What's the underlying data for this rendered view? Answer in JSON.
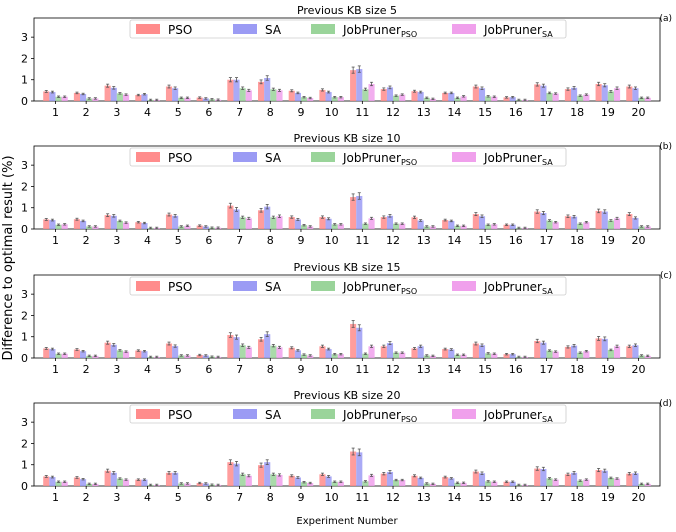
{
  "figure": {
    "ylabel": "Difference to optimal result (%)",
    "xlabel": "Experiment Number"
  },
  "legend": [
    {
      "label": "PSO",
      "sub": "",
      "color": "#ff8c8c"
    },
    {
      "label": "SA",
      "sub": "",
      "color": "#9b9bf4"
    },
    {
      "label": "JobPruner",
      "sub": "PSO",
      "color": "#9ad49a"
    },
    {
      "label": "JobPruner",
      "sub": "SA",
      "color": "#f0a0ec"
    }
  ],
  "chart_data": [
    {
      "type": "bar",
      "title": "Previous KB size 5",
      "panel_label": "(a)",
      "categories": [
        "1",
        "2",
        "3",
        "4",
        "5",
        "6",
        "7",
        "8",
        "9",
        "10",
        "11",
        "12",
        "13",
        "14",
        "15",
        "16",
        "17",
        "18",
        "19",
        "20"
      ],
      "ylim": [
        0,
        3.9
      ],
      "yticks": [
        0,
        1,
        2,
        3
      ],
      "legend_position": "upper center",
      "series": [
        {
          "name": "PSO",
          "values": [
            0.45,
            0.38,
            0.72,
            0.28,
            0.68,
            0.16,
            1.0,
            0.9,
            0.48,
            0.52,
            1.45,
            0.56,
            0.46,
            0.38,
            0.68,
            0.17,
            0.78,
            0.56,
            0.8,
            0.68
          ]
        },
        {
          "name": "SA",
          "values": [
            0.42,
            0.33,
            0.62,
            0.32,
            0.6,
            0.12,
            1.0,
            1.08,
            0.38,
            0.42,
            1.5,
            0.64,
            0.42,
            0.38,
            0.6,
            0.18,
            0.72,
            0.62,
            0.74,
            0.6
          ]
        },
        {
          "name": "JobPruner PSO",
          "values": [
            0.2,
            0.12,
            0.36,
            0.05,
            0.15,
            0.08,
            0.6,
            0.55,
            0.18,
            0.18,
            0.55,
            0.25,
            0.15,
            0.15,
            0.22,
            0.05,
            0.38,
            0.25,
            0.45,
            0.15
          ]
        },
        {
          "name": "JobPruner SA",
          "values": [
            0.2,
            0.12,
            0.3,
            0.05,
            0.15,
            0.06,
            0.5,
            0.5,
            0.14,
            0.18,
            0.8,
            0.3,
            0.1,
            0.22,
            0.2,
            0.05,
            0.35,
            0.3,
            0.6,
            0.15
          ]
        }
      ]
    },
    {
      "type": "bar",
      "title": "Previous KB size 10",
      "panel_label": "(b)",
      "categories": [
        "1",
        "2",
        "3",
        "4",
        "5",
        "6",
        "7",
        "8",
        "9",
        "10",
        "11",
        "12",
        "13",
        "14",
        "15",
        "16",
        "17",
        "18",
        "19",
        "20"
      ],
      "ylim": [
        0,
        3.9
      ],
      "yticks": [
        0,
        1,
        2,
        3
      ],
      "legend_position": "upper center",
      "series": [
        {
          "name": "PSO",
          "values": [
            0.45,
            0.46,
            0.65,
            0.32,
            0.68,
            0.16,
            1.1,
            0.88,
            0.56,
            0.56,
            1.5,
            0.56,
            0.55,
            0.42,
            0.7,
            0.2,
            0.82,
            0.6,
            0.85,
            0.7
          ]
        },
        {
          "name": "SA",
          "values": [
            0.42,
            0.38,
            0.62,
            0.28,
            0.62,
            0.12,
            0.92,
            1.05,
            0.45,
            0.48,
            1.55,
            0.62,
            0.4,
            0.38,
            0.6,
            0.2,
            0.75,
            0.58,
            0.82,
            0.52
          ]
        },
        {
          "name": "JobPruner PSO",
          "values": [
            0.2,
            0.12,
            0.38,
            0.05,
            0.12,
            0.06,
            0.55,
            0.55,
            0.18,
            0.22,
            0.25,
            0.25,
            0.12,
            0.15,
            0.2,
            0.05,
            0.4,
            0.25,
            0.4,
            0.12
          ]
        },
        {
          "name": "JobPruner SA",
          "values": [
            0.22,
            0.12,
            0.3,
            0.05,
            0.15,
            0.06,
            0.5,
            0.6,
            0.12,
            0.22,
            0.5,
            0.25,
            0.12,
            0.15,
            0.22,
            0.05,
            0.32,
            0.32,
            0.5,
            0.12
          ]
        }
      ]
    },
    {
      "type": "bar",
      "title": "Previous KB size 15",
      "panel_label": "(c)",
      "categories": [
        "1",
        "2",
        "3",
        "4",
        "5",
        "6",
        "7",
        "8",
        "9",
        "10",
        "11",
        "12",
        "13",
        "14",
        "15",
        "16",
        "17",
        "18",
        "19",
        "20"
      ],
      "ylim": [
        0,
        3.9
      ],
      "yticks": [
        0,
        1,
        2,
        3
      ],
      "legend_position": "upper center",
      "series": [
        {
          "name": "PSO",
          "values": [
            0.45,
            0.4,
            0.72,
            0.35,
            0.68,
            0.14,
            1.08,
            0.88,
            0.48,
            0.55,
            1.6,
            0.55,
            0.45,
            0.42,
            0.68,
            0.18,
            0.8,
            0.52,
            0.92,
            0.55
          ]
        },
        {
          "name": "SA",
          "values": [
            0.42,
            0.32,
            0.62,
            0.32,
            0.56,
            0.12,
            0.98,
            1.12,
            0.36,
            0.42,
            1.42,
            0.7,
            0.55,
            0.4,
            0.6,
            0.18,
            0.72,
            0.58,
            0.9,
            0.6
          ]
        },
        {
          "name": "JobPruner PSO",
          "values": [
            0.2,
            0.1,
            0.36,
            0.05,
            0.12,
            0.06,
            0.6,
            0.58,
            0.16,
            0.18,
            0.2,
            0.25,
            0.12,
            0.15,
            0.22,
            0.05,
            0.35,
            0.25,
            0.38,
            0.12
          ]
        },
        {
          "name": "JobPruner SA",
          "values": [
            0.2,
            0.1,
            0.3,
            0.05,
            0.12,
            0.05,
            0.5,
            0.5,
            0.12,
            0.18,
            0.55,
            0.25,
            0.1,
            0.15,
            0.2,
            0.05,
            0.3,
            0.32,
            0.55,
            0.1
          ]
        }
      ]
    },
    {
      "type": "bar",
      "title": "Previous KB size 20",
      "panel_label": "(d)",
      "categories": [
        "1",
        "2",
        "3",
        "4",
        "5",
        "6",
        "7",
        "8",
        "9",
        "10",
        "11",
        "12",
        "13",
        "14",
        "15",
        "16",
        "17",
        "18",
        "19",
        "20"
      ],
      "ylim": [
        0,
        3.9
      ],
      "yticks": [
        0,
        1,
        2,
        3
      ],
      "legend_position": "upper center",
      "series": [
        {
          "name": "PSO",
          "values": [
            0.45,
            0.4,
            0.72,
            0.3,
            0.62,
            0.14,
            1.12,
            0.98,
            0.48,
            0.55,
            1.62,
            0.58,
            0.48,
            0.42,
            0.68,
            0.2,
            0.82,
            0.55,
            0.75,
            0.58
          ]
        },
        {
          "name": "SA",
          "values": [
            0.42,
            0.32,
            0.62,
            0.3,
            0.62,
            0.12,
            1.05,
            1.12,
            0.4,
            0.45,
            1.58,
            0.66,
            0.38,
            0.36,
            0.6,
            0.2,
            0.8,
            0.62,
            0.72,
            0.6
          ]
        },
        {
          "name": "JobPruner PSO",
          "values": [
            0.2,
            0.1,
            0.35,
            0.05,
            0.12,
            0.06,
            0.55,
            0.55,
            0.18,
            0.2,
            0.22,
            0.28,
            0.12,
            0.15,
            0.22,
            0.05,
            0.36,
            0.25,
            0.38,
            0.1
          ]
        },
        {
          "name": "JobPruner SA",
          "values": [
            0.2,
            0.1,
            0.3,
            0.05,
            0.12,
            0.05,
            0.48,
            0.52,
            0.14,
            0.2,
            0.5,
            0.28,
            0.1,
            0.15,
            0.2,
            0.05,
            0.3,
            0.3,
            0.35,
            0.1
          ]
        }
      ]
    }
  ]
}
